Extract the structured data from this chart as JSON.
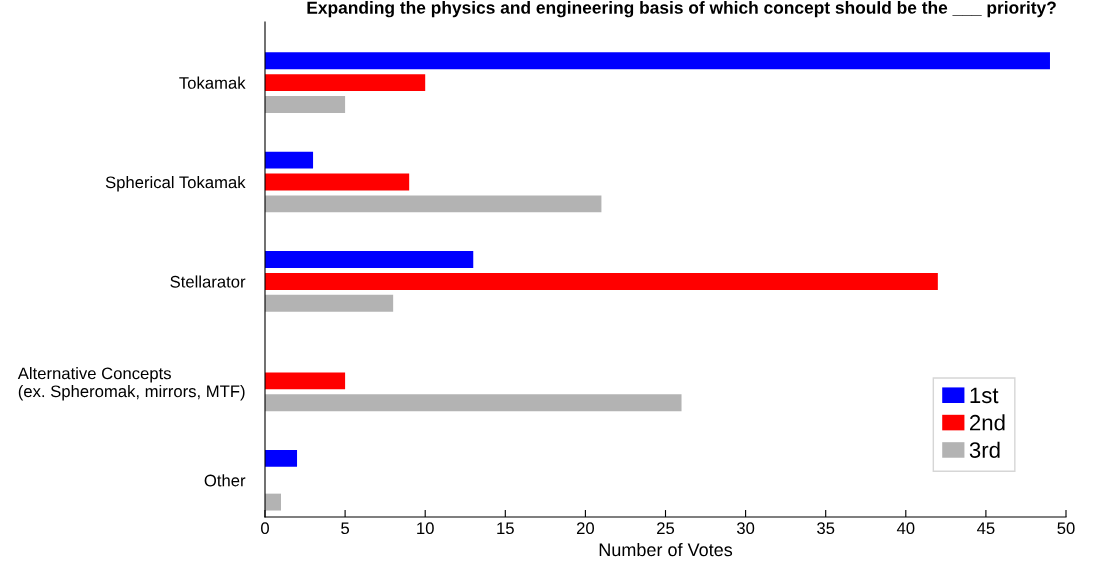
{
  "chart_data": {
    "type": "bar",
    "orientation": "horizontal",
    "title": "Expanding the physics and engineering basis of which concept should be the ___ priority?",
    "xlabel": "Number of Votes",
    "categories": [
      "Tokamak",
      "Spherical Tokamak",
      "Stellarator",
      "Alternative Concepts\n(ex. Spheromak, mirrors, MTF)",
      "Other"
    ],
    "series": [
      {
        "name": "1st",
        "color": "#0000ff",
        "values": [
          49,
          3,
          13,
          0,
          2
        ]
      },
      {
        "name": "2nd",
        "color": "#ff0000",
        "values": [
          10,
          9,
          42,
          5,
          0
        ]
      },
      {
        "name": "3rd",
        "color": "#b3b3b3",
        "values": [
          5,
          21,
          8,
          26,
          1
        ]
      }
    ],
    "xlim": [
      0,
      50
    ],
    "xticks": [
      0,
      5,
      10,
      15,
      20,
      25,
      30,
      35,
      40,
      45,
      50
    ],
    "grid": false,
    "legend": "bottom right"
  }
}
